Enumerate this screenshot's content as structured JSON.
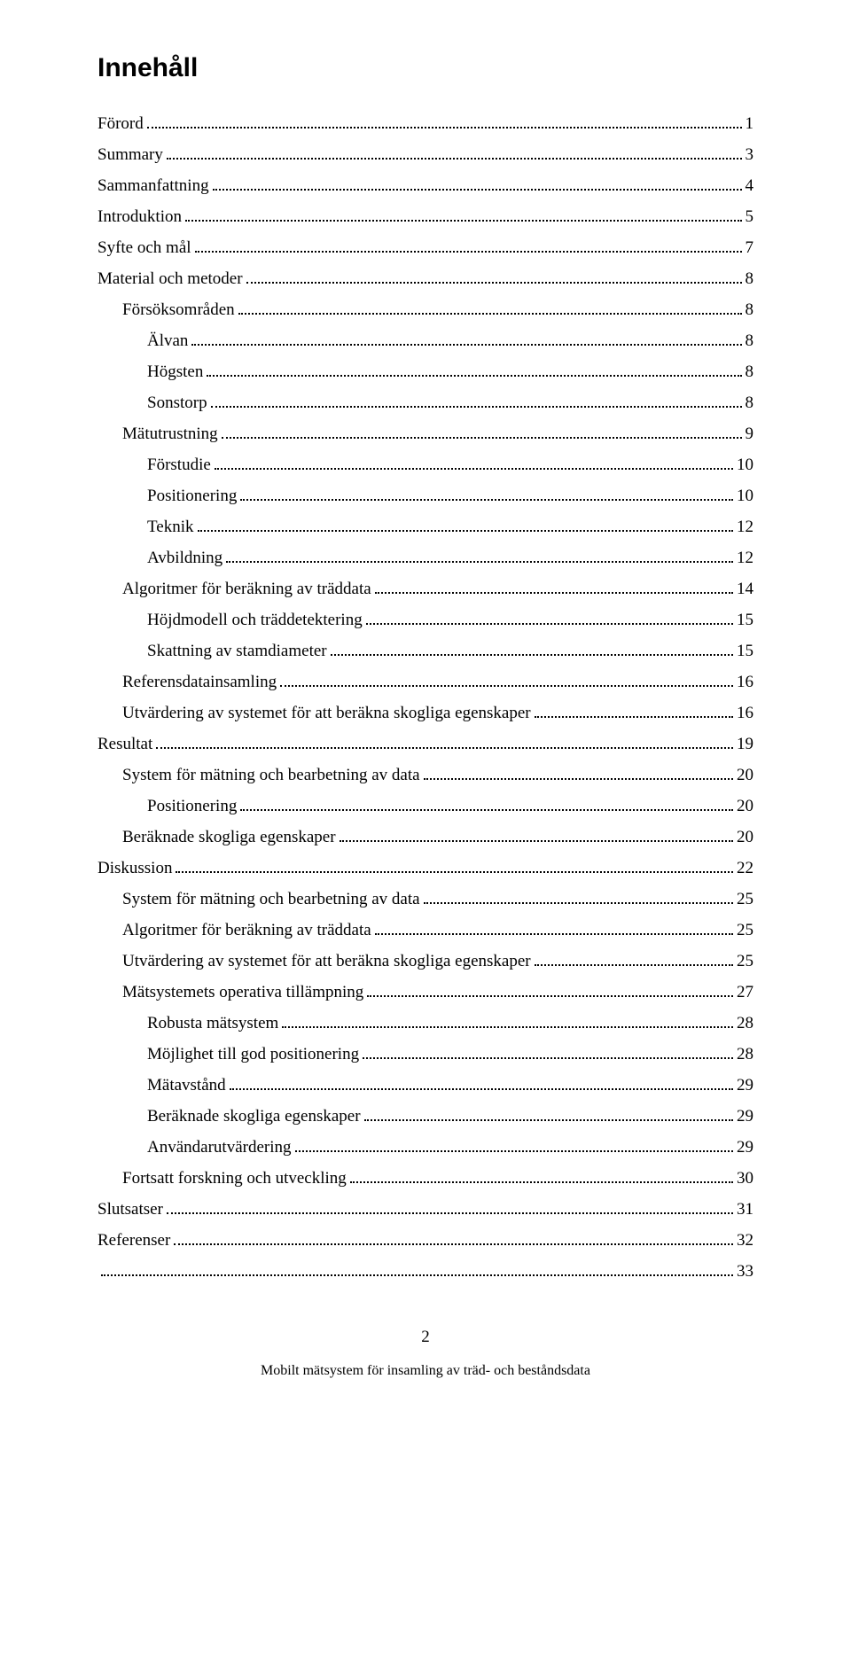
{
  "title": "Innehåll",
  "entries": [
    {
      "label": "Förord",
      "page": "1",
      "level": 0
    },
    {
      "label": "Summary",
      "page": "3",
      "level": 0
    },
    {
      "label": "Sammanfattning",
      "page": "4",
      "level": 0
    },
    {
      "label": "Introduktion",
      "page": "5",
      "level": 0
    },
    {
      "label": "Syfte och mål",
      "page": "7",
      "level": 0
    },
    {
      "label": "Material och metoder",
      "page": "8",
      "level": 0
    },
    {
      "label": "Försöksområden",
      "page": "8",
      "level": 1
    },
    {
      "label": "Älvan",
      "page": "8",
      "level": 2
    },
    {
      "label": "Högsten",
      "page": "8",
      "level": 2
    },
    {
      "label": "Sonstorp",
      "page": "8",
      "level": 2
    },
    {
      "label": "Mätutrustning",
      "page": "9",
      "level": 1
    },
    {
      "label": "Förstudie",
      "page": "10",
      "level": 2
    },
    {
      "label": "Positionering",
      "page": "10",
      "level": 2
    },
    {
      "label": "Teknik",
      "page": "12",
      "level": 2
    },
    {
      "label": "Avbildning",
      "page": "12",
      "level": 2
    },
    {
      "label": "Algoritmer för beräkning av träddata",
      "page": "14",
      "level": 1
    },
    {
      "label": "Höjdmodell och träddetektering",
      "page": "15",
      "level": 2
    },
    {
      "label": "Skattning av stamdiameter",
      "page": "15",
      "level": 2
    },
    {
      "label": "Referensdatainsamling",
      "page": "16",
      "level": 1
    },
    {
      "label": "Utvärdering av systemet för att beräkna skogliga egenskaper",
      "page": "16",
      "level": 1
    },
    {
      "label": "Resultat",
      "page": "19",
      "level": 0
    },
    {
      "label": "System för mätning och bearbetning av data",
      "page": "20",
      "level": 1
    },
    {
      "label": "Positionering",
      "page": "20",
      "level": 2
    },
    {
      "label": "Beräknade skogliga egenskaper",
      "page": "20",
      "level": 1
    },
    {
      "label": "Diskussion",
      "page": "22",
      "level": 0
    },
    {
      "label": "System för mätning och bearbetning av data",
      "page": "25",
      "level": 1
    },
    {
      "label": "Algoritmer för beräkning av träddata",
      "page": "25",
      "level": 1
    },
    {
      "label": "Utvärdering av systemet för att beräkna skogliga egenskaper",
      "page": "25",
      "level": 1
    },
    {
      "label": "Mätsystemets operativa tillämpning",
      "page": "27",
      "level": 1
    },
    {
      "label": "Robusta mätsystem",
      "page": "28",
      "level": 2
    },
    {
      "label": "Möjlighet till god positionering",
      "page": "28",
      "level": 2
    },
    {
      "label": "Mätavstånd",
      "page": "29",
      "level": 2
    },
    {
      "label": "Beräknade skogliga egenskaper",
      "page": "29",
      "level": 2
    },
    {
      "label": "Användarutvärdering",
      "page": "29",
      "level": 2
    },
    {
      "label": "Fortsatt forskning och utveckling",
      "page": "30",
      "level": 1
    },
    {
      "label": "Slutsatser",
      "page": "31",
      "level": 0
    },
    {
      "label": "Referenser",
      "page": "32",
      "level": 0
    },
    {
      "label": "",
      "page": "33",
      "level": 0
    }
  ],
  "pageNumber": "2",
  "footer": "Mobilt mätsystem för insamling av träd- och beståndsdata"
}
